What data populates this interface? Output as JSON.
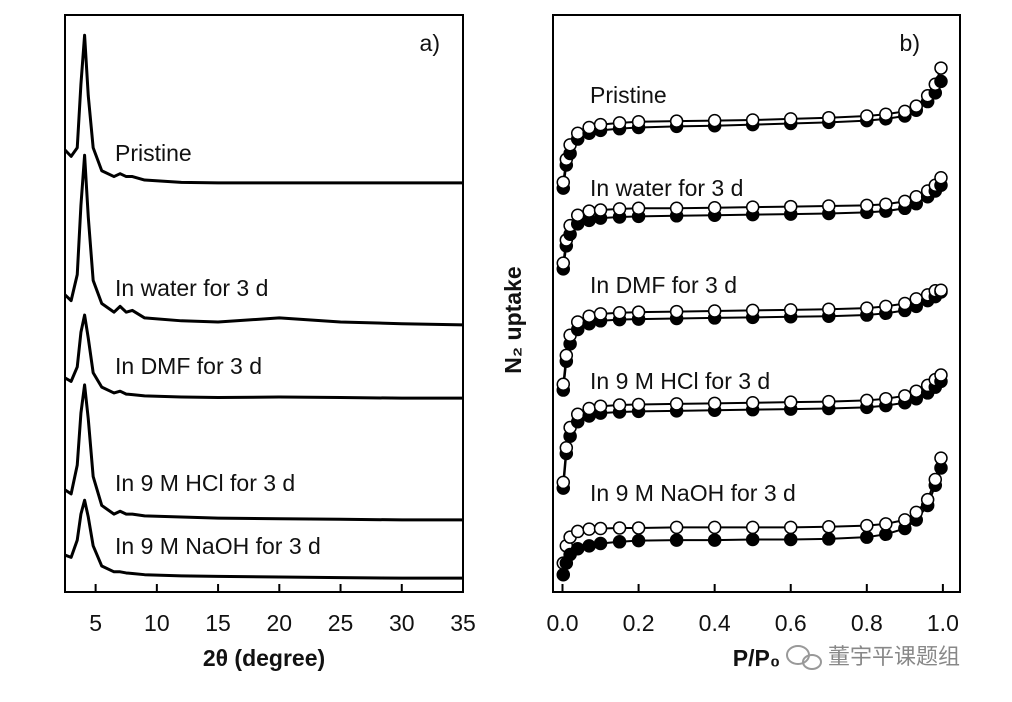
{
  "chart_data": [
    {
      "type": "line",
      "panel_label": "a)",
      "x_label": "2θ (degree)",
      "color": "#000000",
      "x": [
        2.5,
        3,
        3.5,
        3.8,
        4.1,
        4.4,
        4.8,
        5.5,
        6.5,
        7,
        7.5,
        8,
        9,
        12,
        15,
        20,
        25,
        30,
        35
      ],
      "xlim": [
        2.5,
        35
      ],
      "xticks": [
        5,
        10,
        15,
        20,
        25,
        30,
        35
      ],
      "ylim": [
        0,
        100
      ],
      "series": [
        {
          "name": "Pristine",
          "values": [
            76.6,
            75.5,
            77,
            88,
            96.5,
            86,
            77,
            73,
            72,
            72.5,
            72,
            72,
            71.4,
            71,
            70.9,
            70.9,
            70.9,
            70.9,
            70.9
          ]
        },
        {
          "name": "In water for 3 d",
          "values": [
            51.5,
            50.5,
            55,
            67,
            75.7,
            65,
            54,
            50,
            48.5,
            49.5,
            48.5,
            48.8,
            47.5,
            47,
            46.8,
            47.5,
            46.8,
            46.5,
            46.3
          ]
        },
        {
          "name": "In DMF for 3 d",
          "values": [
            37.1,
            36.5,
            39,
            45,
            48,
            44,
            38,
            35.5,
            34.5,
            34.8,
            34.3,
            34.2,
            34,
            33.8,
            33.7,
            33.8,
            33.7,
            33.6,
            33.6
          ]
        },
        {
          "name": "In 9 M HCl for 3 d",
          "values": [
            17.7,
            17,
            22,
            31,
            35.9,
            30,
            20,
            15,
            13.5,
            14,
            13.5,
            13.5,
            13.2,
            13,
            12.8,
            12.7,
            12.6,
            12.5,
            12.5
          ]
        },
        {
          "name": "In 9 M NaOH for 3 d",
          "values": [
            6.4,
            6,
            9,
            13.5,
            15.9,
            13,
            8,
            4.5,
            3.5,
            3.5,
            3.3,
            3.2,
            3,
            2.8,
            2.7,
            2.6,
            2.5,
            2.4,
            2.4
          ]
        }
      ]
    },
    {
      "type": "line",
      "markers": true,
      "panel_label": "b)",
      "x_label": "P/P₀",
      "y_label": "N₂ uptake",
      "color": "#000000",
      "x": [
        0.002,
        0.01,
        0.02,
        0.04,
        0.07,
        0.1,
        0.15,
        0.2,
        0.3,
        0.4,
        0.5,
        0.6,
        0.7,
        0.8,
        0.85,
        0.9,
        0.93,
        0.96,
        0.98,
        0.995
      ],
      "xlim": [
        -0.025,
        1.045
      ],
      "xticks": [
        {
          "value": 0,
          "label": "0.0"
        },
        0.2,
        0.4,
        0.6,
        0.8,
        {
          "value": 1,
          "label": "1.0"
        }
      ],
      "ylim": [
        0,
        100
      ],
      "series": [
        {
          "name": "Pristine",
          "values": [
            70,
            74,
            76,
            78.5,
            79.5,
            80,
            80.3,
            80.5,
            80.7,
            80.8,
            81,
            81.2,
            81.4,
            81.7,
            82,
            82.5,
            83.5,
            85,
            86.5,
            88.5
          ],
          "desorption": [
            71,
            75,
            77.5,
            79.5,
            80.5,
            81,
            81.3,
            81.5,
            81.6,
            81.7,
            81.8,
            82,
            82.2,
            82.5,
            82.8,
            83.3,
            84.2,
            86,
            88,
            90.8
          ]
        },
        {
          "name": "In water for 3 d",
          "values": [
            56,
            60,
            62,
            63.8,
            64.4,
            64.8,
            65,
            65.1,
            65.2,
            65.3,
            65.4,
            65.5,
            65.6,
            65.8,
            66,
            66.5,
            67.3,
            68.5,
            69.5,
            70.5
          ],
          "desorption": [
            57,
            61,
            63.5,
            65.3,
            66,
            66.2,
            66.4,
            66.5,
            66.5,
            66.6,
            66.7,
            66.8,
            66.9,
            67,
            67.2,
            67.7,
            68.5,
            69.5,
            70.5,
            71.8
          ]
        },
        {
          "name": "In DMF for 3 d",
          "values": [
            35,
            40,
            43,
            45.5,
            46.5,
            47,
            47.2,
            47.3,
            47.4,
            47.5,
            47.6,
            47.7,
            47.8,
            48,
            48.3,
            48.8,
            49.5,
            50.5,
            51.2,
            52
          ],
          "desorption": [
            36,
            41,
            44.5,
            46.8,
            47.8,
            48.2,
            48.4,
            48.5,
            48.6,
            48.7,
            48.8,
            48.9,
            49,
            49.2,
            49.5,
            50,
            50.8,
            51.5,
            52.2,
            52.3
          ]
        },
        {
          "name": "In 9 M HCl for 3 d",
          "values": [
            18,
            24,
            27,
            29.5,
            30.5,
            31,
            31.2,
            31.3,
            31.4,
            31.5,
            31.6,
            31.7,
            31.8,
            32,
            32.3,
            32.8,
            33.5,
            34.5,
            35.5,
            36.5
          ],
          "desorption": [
            19,
            25,
            28.5,
            30.8,
            31.8,
            32.2,
            32.4,
            32.5,
            32.6,
            32.7,
            32.8,
            32.9,
            33,
            33.2,
            33.5,
            34,
            34.8,
            35.8,
            36.8,
            37.6
          ]
        },
        {
          "name": "In 9 M NaOH for 3 d",
          "values": [
            3,
            5,
            6.5,
            7.5,
            8,
            8.4,
            8.7,
            8.9,
            9,
            9,
            9.1,
            9.1,
            9.2,
            9.5,
            10,
            11,
            12.5,
            15,
            18.5,
            21.5
          ],
          "desorption": [
            5,
            8,
            9.5,
            10.5,
            10.9,
            11,
            11.1,
            11.1,
            11.2,
            11.2,
            11.2,
            11.2,
            11.3,
            11.5,
            11.8,
            12.5,
            13.8,
            16,
            19.5,
            23.2
          ]
        }
      ]
    }
  ],
  "watermark": "董宇平课题组"
}
